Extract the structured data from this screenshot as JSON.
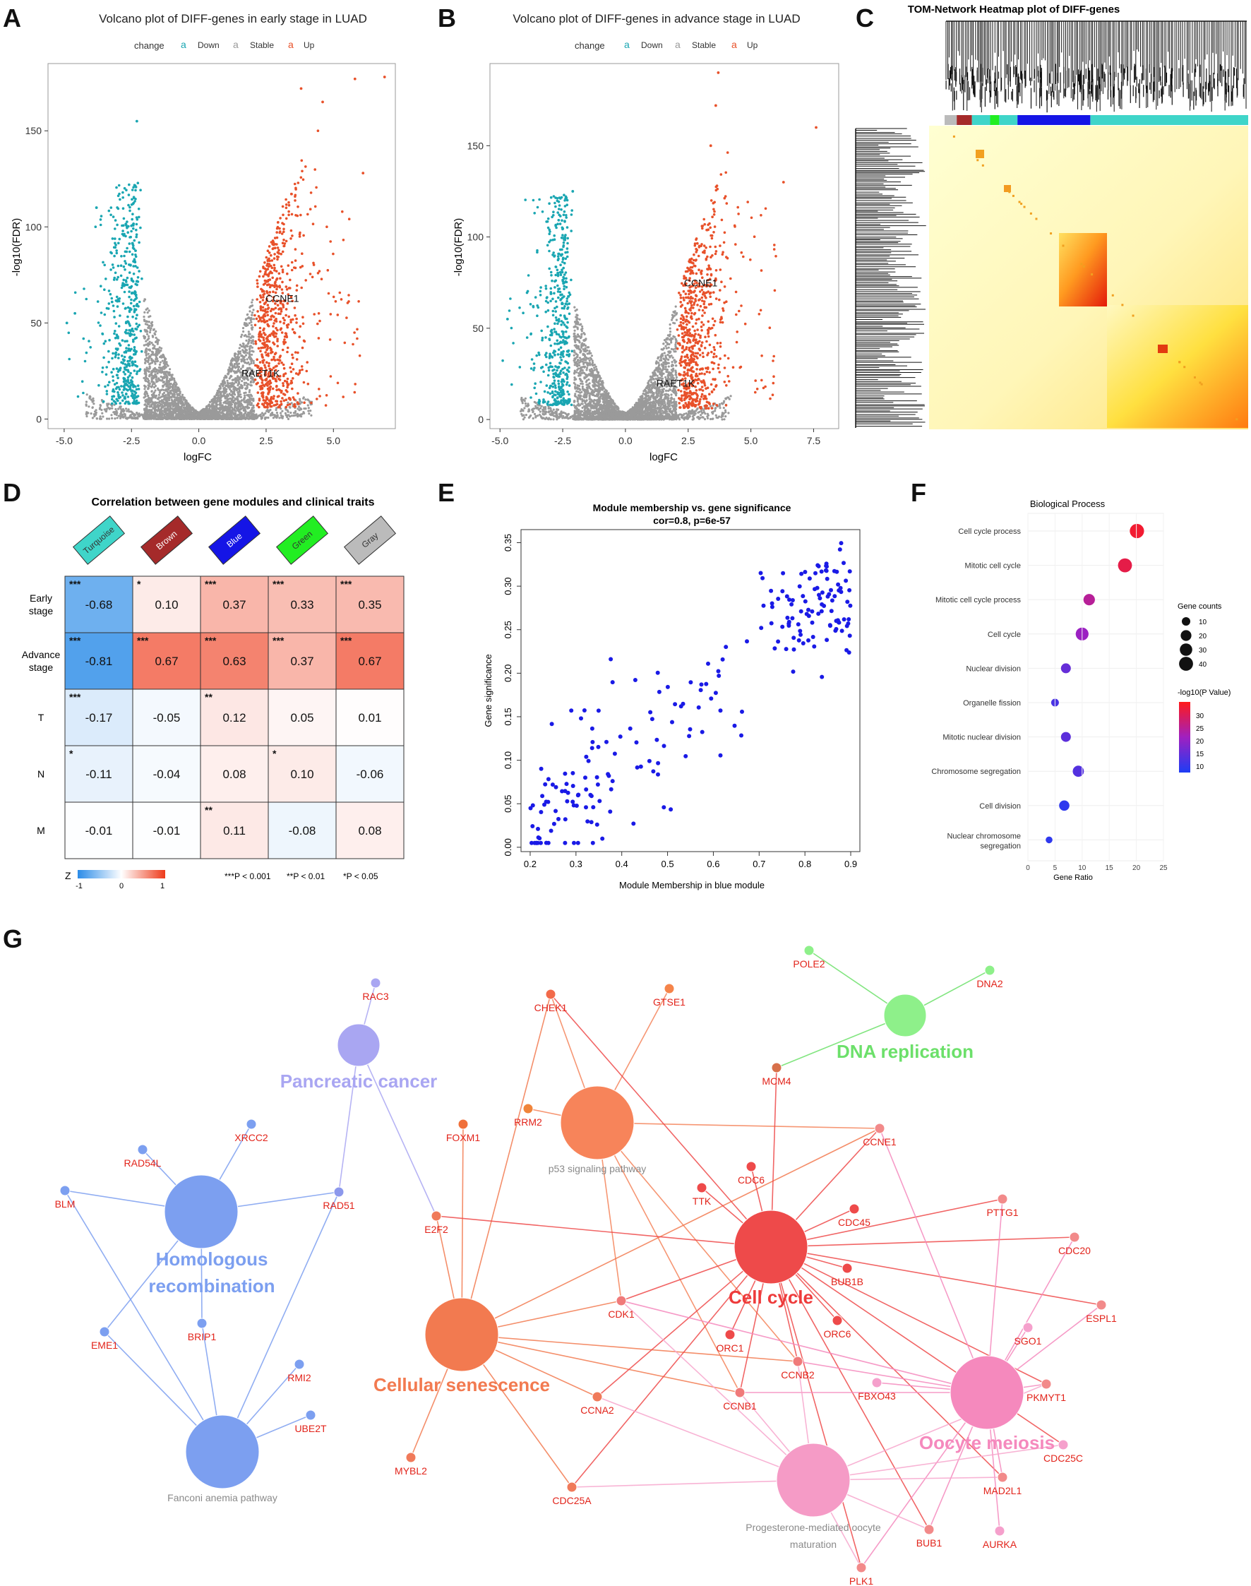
{
  "panel_letters": [
    "A",
    "B",
    "C",
    "D",
    "E",
    "F",
    "G"
  ],
  "colors": {
    "down": "#1aa6b2",
    "stable": "#9a9a9a",
    "up": "#e8512a",
    "turquoise": "#3fd5c9",
    "brown": "#a52a2a",
    "blue": "#1515e6",
    "green": "#22ee22",
    "gray": "#bbbbbb",
    "network_blue": "#7c9ff0",
    "network_purple": "#a9a6f2",
    "network_red": "#f05a5a",
    "network_orange": "#f27a50",
    "network_green": "#8ef08a",
    "network_pink": "#f59bc6"
  },
  "chart_data": [
    {
      "id": "A",
      "type": "scatter",
      "title": "Volcano plot of DIFF-genes in early stage in LUAD",
      "legend": {
        "title": "change",
        "items": [
          "Down",
          "Stable",
          "Up"
        ],
        "placement": "top"
      },
      "xlabel": "logFC",
      "ylabel": "-log10(FDR)",
      "xlim": [
        -5.6,
        7.3
      ],
      "ylim": [
        -5,
        185
      ],
      "xticks": [
        -5.0,
        -2.5,
        0.0,
        2.5,
        5.0
      ],
      "xtick_labels": [
        "-5.0",
        "-2.5",
        "0.0",
        "2.5",
        "5.0"
      ],
      "yticks": [
        0,
        50,
        100,
        150
      ],
      "ytick_labels": [
        "0",
        "50",
        "100",
        "150"
      ],
      "annotations": [
        {
          "text": "CCNE1",
          "x": 3.1,
          "y": 61
        },
        {
          "text": "RAET1K",
          "x": 2.3,
          "y": 22
        }
      ],
      "outliers_up": [
        [
          4.6,
          165
        ],
        [
          5.8,
          177
        ],
        [
          6.9,
          178
        ],
        [
          3.8,
          172
        ],
        [
          6.1,
          128
        ]
      ],
      "outliers_down": [
        [
          -2.3,
          155
        ],
        [
          -3.8,
          110
        ],
        [
          -4.6,
          55
        ],
        [
          -4.9,
          50
        ]
      ]
    },
    {
      "id": "B",
      "type": "scatter",
      "title": "Volcano plot of DIFF-genes in advance stage in LUAD",
      "legend": {
        "title": "change",
        "items": [
          "Down",
          "Stable",
          "Up"
        ],
        "placement": "top"
      },
      "xlabel": "logFC",
      "ylabel": "-log10(FDR)",
      "xlim": [
        -5.4,
        8.5
      ],
      "ylim": [
        -5,
        195
      ],
      "xticks": [
        -5.0,
        -2.5,
        0.0,
        2.5,
        5.0,
        7.5
      ],
      "xtick_labels": [
        "-5.0",
        "-2.5",
        "0.0",
        "2.5",
        "5.0",
        "7.5"
      ],
      "yticks": [
        0,
        50,
        100,
        150
      ],
      "ytick_labels": [
        "0",
        "50",
        "100",
        "150"
      ],
      "annotations": [
        {
          "text": "CCNE1",
          "x": 3.0,
          "y": 73
        },
        {
          "text": "RAET1K",
          "x": 2.0,
          "y": 18
        }
      ],
      "outliers_up": [
        [
          3.7,
          190
        ],
        [
          3.6,
          172
        ],
        [
          7.6,
          160
        ],
        [
          3.4,
          150
        ],
        [
          6.3,
          130
        ]
      ],
      "outliers_down": [
        [
          -2.1,
          125
        ],
        [
          -4.7,
          55
        ]
      ]
    },
    {
      "id": "C",
      "type": "heatmap",
      "title": "TOM-Network Heatmap plot of DIFF-genes",
      "module_order": [
        "gray",
        "brown",
        "turquoise",
        "green",
        "turquoise",
        "blue",
        "turquoise"
      ]
    },
    {
      "id": "D",
      "type": "heatmap",
      "title": "Correlation between gene modules and clinical traits",
      "modules": [
        "Turquoise",
        "Brown",
        "Blue",
        "Green",
        "Gray"
      ],
      "traits": [
        "Early stage",
        "Advance stage",
        "T",
        "N",
        "M"
      ],
      "values": [
        [
          -0.68,
          0.1,
          0.37,
          0.33,
          0.35
        ],
        [
          -0.81,
          0.67,
          0.63,
          0.37,
          0.67
        ],
        [
          -0.17,
          -0.05,
          0.12,
          0.05,
          0.01
        ],
        [
          -0.11,
          -0.04,
          0.08,
          0.1,
          -0.06
        ],
        [
          -0.01,
          -0.01,
          0.11,
          -0.08,
          0.08
        ]
      ],
      "stars": [
        [
          "***",
          "*",
          "***",
          "***",
          "***"
        ],
        [
          "***",
          "***",
          "***",
          "***",
          "***"
        ],
        [
          "***",
          "",
          "**",
          "",
          ""
        ],
        [
          "*",
          "",
          "",
          "*",
          ""
        ],
        [
          "",
          "",
          "**",
          "",
          ""
        ]
      ],
      "colorbar": {
        "label": "Z",
        "ticks": [
          "-1",
          "0",
          "1"
        ]
      },
      "pvalue_legend": [
        "***P < 0.001",
        "**P < 0.01",
        "*P < 0.05"
      ]
    },
    {
      "id": "E",
      "type": "scatter",
      "title": "Module membership vs. gene significance",
      "subtitle": "cor=0.8, p=6e-57",
      "xlabel": "Module Membership in blue module",
      "ylabel": "Gene significance",
      "xlim": [
        0.18,
        0.92
      ],
      "ylim": [
        -0.005,
        0.365
      ],
      "xticks": [
        0.2,
        0.3,
        0.4,
        0.5,
        0.6,
        0.7,
        0.8,
        0.9
      ],
      "xtick_labels": [
        "0.2",
        "0.3",
        "0.4",
        "0.5",
        "0.6",
        "0.7",
        "0.8",
        "0.9"
      ],
      "yticks": [
        0.0,
        0.05,
        0.1,
        0.15,
        0.2,
        0.25,
        0.3,
        0.35
      ],
      "ytick_labels": [
        "0.00",
        "0.05",
        "0.10",
        "0.15",
        "0.20",
        "0.25",
        "0.30",
        "0.35"
      ],
      "n_points": 230
    },
    {
      "id": "F",
      "type": "scatter",
      "title": "Biological Process",
      "xlabel": "Gene Ratio",
      "xlim": [
        0,
        25
      ],
      "xticks": [
        0,
        5,
        10,
        15,
        20,
        25
      ],
      "xtick_labels": [
        "0",
        "5",
        "10",
        "15",
        "20",
        "25"
      ],
      "terms": [
        "Cell cycle process",
        "Mitotic cell cycle",
        "Mitotic cell cycle process",
        "Cell cycle",
        "Nuclear division",
        "Organelle fission",
        "Mitotic nuclear division",
        "Chromosome segregation",
        "Cell division",
        "Nuclear chromosome segregation"
      ],
      "gene_ratio": [
        20.1,
        17.9,
        11.3,
        10.0,
        7.0,
        5.0,
        7.0,
        9.3,
        6.7,
        3.9
      ],
      "counts": [
        42,
        40,
        24,
        32,
        16,
        8,
        16,
        22,
        18,
        5
      ],
      "neglog10_p": [
        33,
        31,
        24,
        20,
        14,
        11,
        13,
        12,
        8,
        8
      ],
      "size_legend": {
        "title": "Gene counts",
        "ticks": [
          "10",
          "20",
          "30",
          "40"
        ]
      },
      "color_legend": {
        "title": "-log10(P Value)",
        "ticks": [
          "30",
          "25",
          "20",
          "15",
          "10"
        ],
        "range": [
          6,
          35
        ]
      }
    }
  ],
  "panel_G": {
    "terms": [
      {
        "label": "Homologous recombination",
        "style": "big",
        "color": "#7c9ff0"
      },
      {
        "label": "Fanconi anemia pathway",
        "style": "small",
        "color": "#8a8a8a"
      },
      {
        "label": "Pancreatic cancer",
        "style": "big",
        "color": "#a9a6f2"
      },
      {
        "label": "p53 signaling pathway",
        "style": "small",
        "color": "#8a8a8a"
      },
      {
        "label": "Cellular senescence",
        "style": "big",
        "color": "#f27a50"
      },
      {
        "label": "Cell cycle",
        "style": "big",
        "color": "#ee3b3b"
      },
      {
        "label": "DNA replication",
        "style": "big",
        "color": "#6ce06a"
      },
      {
        "label": "Oocyte meiosis",
        "style": "big",
        "color": "#f589bd"
      },
      {
        "label": "Progesterone-mediated oocyte maturation",
        "style": "small",
        "color": "#8a8a8a"
      }
    ],
    "genes": [
      "RAC3",
      "CHEK1",
      "GTSE1",
      "POLE2",
      "DNA2",
      "MCM4",
      "XRCC2",
      "RAD54L",
      "BLM",
      "RAD51",
      "FOXM1",
      "RRM2",
      "CCNE1",
      "CDC6",
      "TTK",
      "CDC45",
      "PTTG1",
      "CDC20",
      "E2F2",
      "BUB1B",
      "ESPL1",
      "SGO1",
      "CDK1",
      "ORC1",
      "ORC6",
      "CCNB2",
      "RMI2",
      "EME1",
      "BRIP1",
      "UBE2T",
      "FBXO43",
      "PKMYT1",
      "CCNA2",
      "CCNB1",
      "CDC25C",
      "MAD2L1",
      "MYBL2",
      "CDC25A",
      "BUB1",
      "AURKA",
      "PLK1"
    ]
  }
}
